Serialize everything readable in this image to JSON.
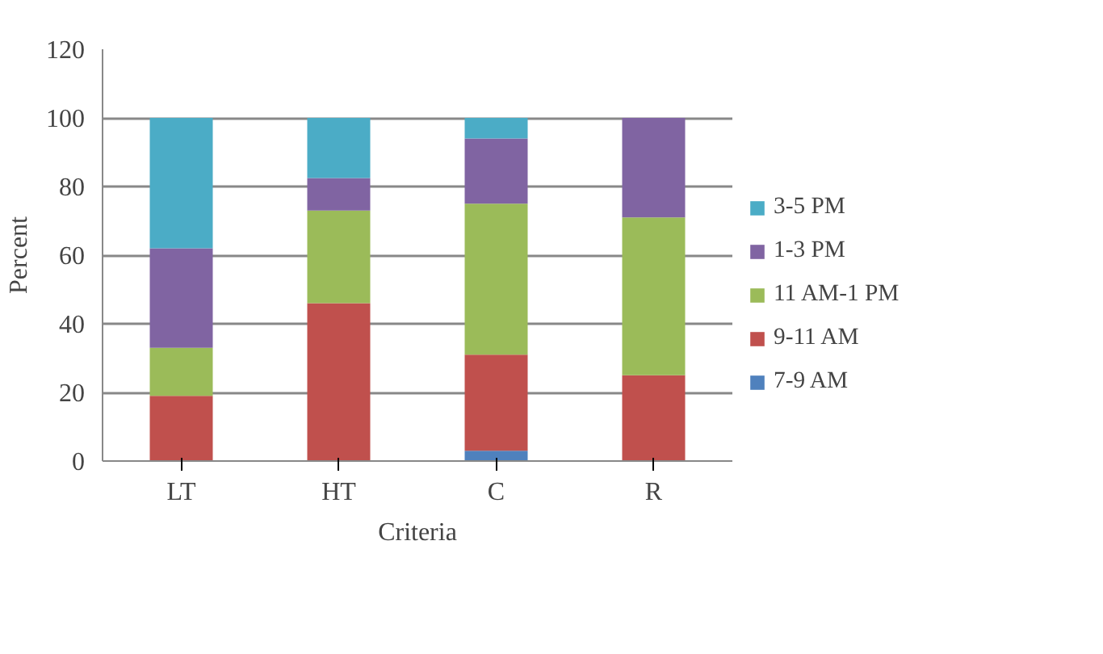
{
  "chart_data": {
    "type": "bar",
    "stacked": true,
    "xlabel": "Criteria",
    "ylabel": "Percent",
    "categories": [
      "LT",
      "HT",
      "C",
      "R"
    ],
    "series": [
      {
        "name": "7-9 AM",
        "color": "#4f81bd",
        "values": [
          0,
          0,
          3,
          0
        ]
      },
      {
        "name": "9-11 AM",
        "color": "#c0504d",
        "values": [
          19,
          46,
          28,
          25
        ]
      },
      {
        "name": "11 AM-1 PM",
        "color": "#9bbb59",
        "values": [
          14,
          27,
          44,
          46
        ]
      },
      {
        "name": "1-3 PM",
        "color": "#8064a2",
        "values": [
          29,
          9.5,
          19,
          29
        ]
      },
      {
        "name": "3-5 PM",
        "color": "#4bacc6",
        "values": [
          38,
          17.5,
          6,
          0
        ]
      }
    ],
    "ylim": [
      0,
      120
    ],
    "yticks": [
      0,
      20,
      40,
      60,
      80,
      100,
      120
    ],
    "grid": "y",
    "legend": "right"
  }
}
